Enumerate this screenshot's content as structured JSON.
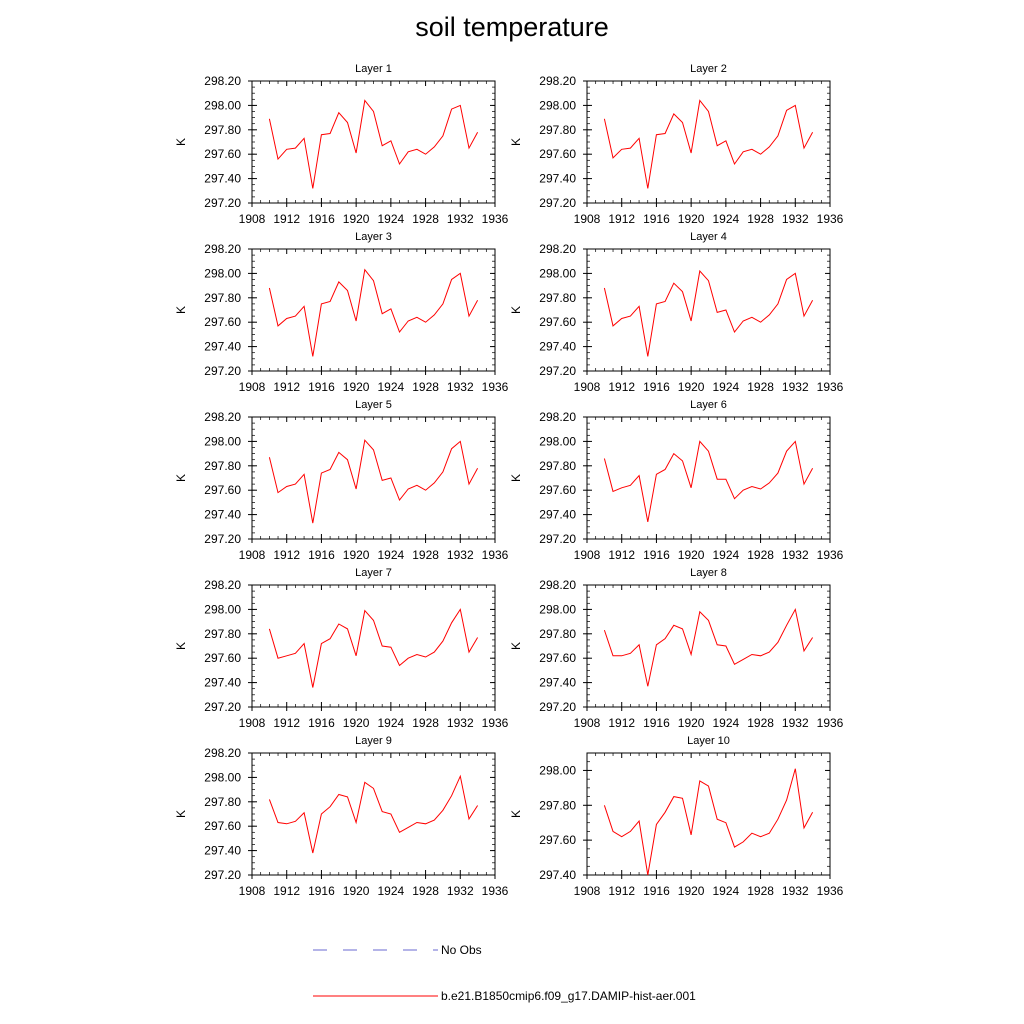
{
  "title": "soil temperature",
  "chart_data": {
    "type": "line",
    "ylabel": "K",
    "x_ticks": [
      1908,
      1912,
      1916,
      1920,
      1924,
      1928,
      1932,
      1936
    ],
    "xlim": [
      1908,
      1936
    ],
    "x": [
      1910,
      1911,
      1912,
      1913,
      1914,
      1915,
      1916,
      1917,
      1918,
      1919,
      1920,
      1921,
      1922,
      1923,
      1924,
      1925,
      1926,
      1927,
      1928,
      1929,
      1930,
      1931,
      1932,
      1933,
      1934
    ],
    "line_color": "#ff0000",
    "panels": [
      {
        "title": "Layer 1",
        "ylim": [
          297.2,
          298.2
        ],
        "y_ticks": [
          "297.20",
          "297.40",
          "297.60",
          "297.80",
          "298.00",
          "298.20"
        ],
        "values": [
          297.89,
          297.56,
          297.64,
          297.65,
          297.73,
          297.32,
          297.76,
          297.77,
          297.94,
          297.86,
          297.61,
          298.04,
          297.95,
          297.67,
          297.71,
          297.52,
          297.62,
          297.64,
          297.6,
          297.66,
          297.75,
          297.97,
          298.0,
          297.65,
          297.78
        ]
      },
      {
        "title": "Layer 2",
        "ylim": [
          297.2,
          298.2
        ],
        "y_ticks": [
          "297.20",
          "297.40",
          "297.60",
          "297.80",
          "298.00",
          "298.20"
        ],
        "values": [
          297.89,
          297.57,
          297.64,
          297.65,
          297.73,
          297.32,
          297.76,
          297.77,
          297.93,
          297.86,
          297.61,
          298.04,
          297.95,
          297.67,
          297.71,
          297.52,
          297.62,
          297.64,
          297.6,
          297.66,
          297.75,
          297.96,
          298.0,
          297.65,
          297.78
        ]
      },
      {
        "title": "Layer 3",
        "ylim": [
          297.2,
          298.2
        ],
        "y_ticks": [
          "297.20",
          "297.40",
          "297.60",
          "297.80",
          "298.00",
          "298.20"
        ],
        "values": [
          297.88,
          297.57,
          297.63,
          297.65,
          297.73,
          297.32,
          297.75,
          297.77,
          297.93,
          297.86,
          297.61,
          298.03,
          297.94,
          297.67,
          297.71,
          297.52,
          297.61,
          297.64,
          297.6,
          297.66,
          297.75,
          297.95,
          298.0,
          297.65,
          297.78
        ]
      },
      {
        "title": "Layer 4",
        "ylim": [
          297.2,
          298.2
        ],
        "y_ticks": [
          "297.20",
          "297.40",
          "297.60",
          "297.80",
          "298.00",
          "298.20"
        ],
        "values": [
          297.88,
          297.57,
          297.63,
          297.65,
          297.73,
          297.32,
          297.75,
          297.77,
          297.92,
          297.85,
          297.61,
          298.02,
          297.94,
          297.68,
          297.7,
          297.52,
          297.61,
          297.64,
          297.6,
          297.66,
          297.75,
          297.95,
          298.0,
          297.65,
          297.78
        ]
      },
      {
        "title": "Layer 5",
        "ylim": [
          297.2,
          298.2
        ],
        "y_ticks": [
          "297.20",
          "297.40",
          "297.60",
          "297.80",
          "298.00",
          "298.20"
        ],
        "values": [
          297.87,
          297.58,
          297.63,
          297.65,
          297.73,
          297.33,
          297.74,
          297.77,
          297.91,
          297.85,
          297.61,
          298.01,
          297.93,
          297.68,
          297.7,
          297.52,
          297.61,
          297.64,
          297.6,
          297.66,
          297.75,
          297.94,
          298.0,
          297.65,
          297.78
        ]
      },
      {
        "title": "Layer 6",
        "ylim": [
          297.2,
          298.2
        ],
        "y_ticks": [
          "297.20",
          "297.40",
          "297.60",
          "297.80",
          "298.00",
          "298.20"
        ],
        "values": [
          297.86,
          297.59,
          297.62,
          297.64,
          297.72,
          297.34,
          297.73,
          297.77,
          297.9,
          297.84,
          297.62,
          298.0,
          297.92,
          297.69,
          297.69,
          297.53,
          297.6,
          297.63,
          297.61,
          297.66,
          297.74,
          297.92,
          298.0,
          297.65,
          297.78
        ]
      },
      {
        "title": "Layer 7",
        "ylim": [
          297.2,
          298.2
        ],
        "y_ticks": [
          "297.20",
          "297.40",
          "297.60",
          "297.80",
          "298.00",
          "298.20"
        ],
        "values": [
          297.84,
          297.6,
          297.62,
          297.64,
          297.72,
          297.36,
          297.72,
          297.76,
          297.88,
          297.84,
          297.62,
          297.99,
          297.91,
          297.7,
          297.69,
          297.54,
          297.6,
          297.63,
          297.61,
          297.65,
          297.74,
          297.89,
          298.0,
          297.65,
          297.77
        ]
      },
      {
        "title": "Layer 8",
        "ylim": [
          297.2,
          298.2
        ],
        "y_ticks": [
          "297.20",
          "297.40",
          "297.60",
          "297.80",
          "298.00",
          "298.20"
        ],
        "values": [
          297.83,
          297.62,
          297.62,
          297.64,
          297.71,
          297.37,
          297.71,
          297.76,
          297.87,
          297.84,
          297.63,
          297.98,
          297.91,
          297.71,
          297.7,
          297.55,
          297.59,
          297.63,
          297.62,
          297.65,
          297.73,
          297.87,
          298.0,
          297.66,
          297.77
        ]
      },
      {
        "title": "Layer 9",
        "ylim": [
          297.2,
          298.2
        ],
        "y_ticks": [
          "297.20",
          "297.40",
          "297.60",
          "297.80",
          "298.00",
          "298.20"
        ],
        "values": [
          297.82,
          297.63,
          297.62,
          297.64,
          297.71,
          297.38,
          297.7,
          297.76,
          297.86,
          297.84,
          297.63,
          297.96,
          297.91,
          297.72,
          297.7,
          297.55,
          297.59,
          297.63,
          297.62,
          297.65,
          297.73,
          297.85,
          298.01,
          297.66,
          297.77
        ]
      },
      {
        "title": "Layer 10",
        "ylim": [
          297.4,
          298.1
        ],
        "y_ticks": [
          "297.40",
          "297.60",
          "297.80",
          "298.00"
        ],
        "values": [
          297.8,
          297.65,
          297.62,
          297.65,
          297.71,
          297.4,
          297.69,
          297.76,
          297.85,
          297.84,
          297.63,
          297.94,
          297.91,
          297.72,
          297.7,
          297.56,
          297.59,
          297.64,
          297.62,
          297.64,
          297.72,
          297.83,
          298.01,
          297.67,
          297.76
        ]
      }
    ]
  },
  "legend": {
    "items": [
      {
        "label": "No Obs",
        "color": "#6a6ad0",
        "style": "dashed"
      },
      {
        "label": "b.e21.B1850cmip6.f09_g17.DAMIP-hist-aer.001",
        "color": "#ff0000",
        "style": "solid"
      }
    ]
  }
}
